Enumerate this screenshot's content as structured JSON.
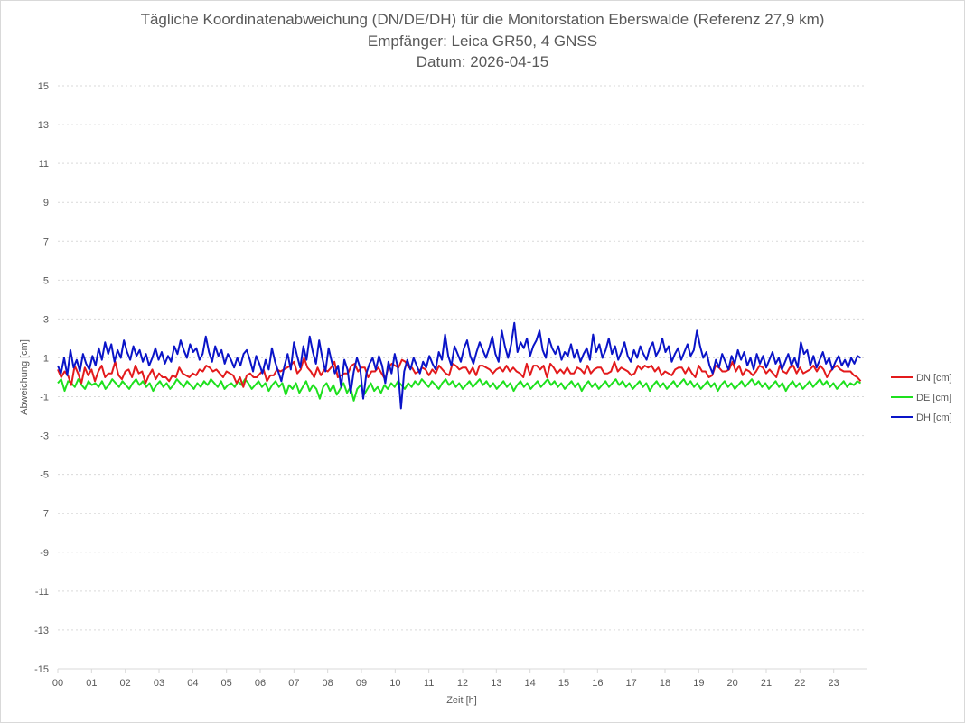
{
  "chart_data": {
    "type": "line",
    "title": "Tägliche Koordinatenabweichung (DN/DE/DH) für die Monitorstation Eberswalde (Referenz 27,9 km)",
    "subtitle_lines": [
      "Empfänger: Leica GR50, 4 GNSS",
      "Datum: 2026-04-15"
    ],
    "xlabel": "Zeit [h]",
    "ylabel": "Abweichung [cm]",
    "x_ticks": [
      "00",
      "01",
      "02",
      "03",
      "04",
      "05",
      "06",
      "07",
      "08",
      "09",
      "10",
      "11",
      "12",
      "13",
      "14",
      "15",
      "16",
      "17",
      "18",
      "19",
      "20",
      "21",
      "22",
      "23"
    ],
    "xlim": [
      0,
      24
    ],
    "ylim": [
      -15,
      15
    ],
    "y_ticks": [
      15,
      13,
      11,
      9,
      7,
      5,
      3,
      1,
      -1,
      -3,
      -5,
      -7,
      -9,
      -11,
      -13,
      -15
    ],
    "grid": "horizontal dotted",
    "legend_position": "right",
    "series": [
      {
        "name": "DN [cm]",
        "color": "#e31a1c",
        "values": [
          0.4,
          0.0,
          0.3,
          0.1,
          -0.4,
          0.6,
          0.2,
          -0.3,
          0.5,
          0.1,
          0.4,
          -0.2,
          0.3,
          0.6,
          0.0,
          0.2,
          0.2,
          0.8,
          0.1,
          -0.1,
          0.3,
          0.4,
          0.0,
          0.6,
          0.2,
          0.3,
          -0.3,
          0.1,
          0.4,
          -0.1,
          0.2,
          0.0,
          0.0,
          -0.2,
          0.1,
          0.0,
          0.5,
          0.2,
          0.1,
          0.0,
          0.2,
          0.1,
          0.4,
          0.3,
          0.6,
          0.5,
          0.3,
          0.4,
          0.2,
          0.0,
          0.3,
          0.2,
          0.1,
          -0.3,
          0.0,
          -0.5,
          0.1,
          0.2,
          0.0,
          0.0,
          0.2,
          0.4,
          -0.2,
          0.1,
          0.1,
          0.4,
          0.3,
          0.4,
          0.5,
          0.6,
          0.8,
          0.2,
          0.4,
          1.0,
          0.5,
          0.3,
          0.0,
          0.5,
          0.1,
          0.4,
          0.3,
          0.5,
          0.8,
          0.0,
          0.1,
          0.2,
          0.2,
          0.6,
          0.7,
          0.3,
          0.5,
          0.5,
          0.0,
          0.3,
          0.3,
          0.5,
          0.2,
          -0.1,
          0.5,
          0.7,
          0.6,
          0.5,
          0.9,
          0.8,
          0.5,
          0.5,
          0.2,
          0.3,
          0.5,
          0.4,
          0.1,
          0.4,
          0.2,
          0.6,
          0.4,
          0.2,
          0.1,
          0.7,
          0.6,
          0.4,
          0.5,
          0.5,
          0.2,
          0.5,
          0.1,
          0.6,
          0.6,
          0.5,
          0.4,
          0.2,
          0.4,
          0.5,
          0.3,
          0.6,
          0.3,
          0.5,
          0.3,
          0.2,
          0.0,
          0.7,
          0.1,
          0.6,
          0.6,
          0.4,
          0.6,
          0.0,
          0.7,
          0.5,
          0.2,
          0.4,
          0.2,
          0.5,
          0.2,
          0.2,
          0.5,
          0.4,
          0.2,
          0.6,
          0.2,
          0.4,
          0.5,
          0.5,
          0.2,
          0.2,
          0.3,
          0.8,
          0.3,
          0.5,
          0.4,
          0.3,
          0.1,
          0.2,
          0.6,
          0.4,
          0.6,
          0.5,
          0.6,
          0.3,
          0.5,
          0.1,
          0.3,
          0.2,
          0.1,
          0.4,
          0.5,
          0.5,
          0.2,
          0.5,
          0.2,
          0.0,
          0.6,
          0.3,
          0.3,
          0.0,
          0.1,
          0.6,
          0.5,
          0.3,
          0.3,
          0.4,
          0.8,
          0.3,
          0.6,
          0.1,
          0.4,
          0.3,
          0.1,
          0.3,
          0.6,
          0.5,
          0.2,
          0.4,
          0.2,
          0.0,
          0.6,
          0.3,
          0.2,
          0.5,
          0.6,
          0.2,
          0.5,
          0.2,
          0.3,
          0.4,
          0.6,
          0.3,
          0.6,
          0.4,
          0.0,
          0.3,
          0.5,
          0.6,
          0.4,
          0.3,
          0.3,
          0.3,
          0.1,
          0.0,
          -0.2
        ]
      },
      {
        "name": "DE [cm]",
        "color": "#1ee01e",
        "values": [
          -0.3,
          -0.1,
          -0.7,
          -0.2,
          -0.3,
          -0.5,
          -0.1,
          -0.4,
          -0.6,
          -0.2,
          -0.4,
          -0.3,
          -0.5,
          -0.2,
          -0.6,
          -0.4,
          -0.1,
          -0.3,
          -0.5,
          -0.2,
          -0.4,
          -0.6,
          -0.3,
          -0.1,
          -0.4,
          -0.2,
          -0.5,
          -0.3,
          -0.7,
          -0.4,
          -0.2,
          -0.5,
          -0.3,
          -0.6,
          -0.4,
          -0.1,
          -0.3,
          -0.5,
          -0.2,
          -0.4,
          -0.6,
          -0.3,
          -0.5,
          -0.2,
          -0.4,
          -0.1,
          -0.3,
          -0.5,
          -0.2,
          -0.6,
          -0.4,
          -0.3,
          -0.5,
          -0.2,
          -0.4,
          -0.1,
          -0.3,
          -0.6,
          -0.4,
          -0.2,
          -0.5,
          -0.3,
          -0.7,
          -0.4,
          -0.2,
          -0.5,
          -0.3,
          -0.9,
          -0.4,
          -0.6,
          -0.3,
          -0.8,
          -0.5,
          -0.2,
          -0.7,
          -0.4,
          -0.6,
          -1.1,
          -0.5,
          -0.3,
          -0.7,
          -0.4,
          -0.9,
          -0.6,
          -0.3,
          -0.8,
          -0.5,
          -1.2,
          -0.6,
          -0.4,
          -0.9,
          -0.6,
          -0.3,
          -0.7,
          -0.5,
          -0.8,
          -0.4,
          -0.6,
          -0.3,
          -0.5,
          -0.2,
          -0.4,
          -0.6,
          -0.3,
          -0.5,
          -0.2,
          -0.4,
          -0.1,
          -0.3,
          -0.5,
          -0.2,
          -0.4,
          -0.6,
          -0.3,
          -0.1,
          -0.4,
          -0.2,
          -0.5,
          -0.3,
          -0.6,
          -0.4,
          -0.2,
          -0.5,
          -0.3,
          -0.1,
          -0.4,
          -0.2,
          -0.5,
          -0.3,
          -0.6,
          -0.4,
          -0.2,
          -0.5,
          -0.3,
          -0.7,
          -0.4,
          -0.2,
          -0.5,
          -0.3,
          -0.6,
          -0.4,
          -0.2,
          -0.5,
          -0.3,
          -0.1,
          -0.4,
          -0.2,
          -0.5,
          -0.3,
          -0.6,
          -0.4,
          -0.2,
          -0.5,
          -0.3,
          -0.7,
          -0.4,
          -0.2,
          -0.5,
          -0.3,
          -0.6,
          -0.4,
          -0.2,
          -0.5,
          -0.3,
          -0.1,
          -0.4,
          -0.2,
          -0.5,
          -0.3,
          -0.6,
          -0.4,
          -0.2,
          -0.5,
          -0.3,
          -0.7,
          -0.4,
          -0.2,
          -0.5,
          -0.3,
          -0.6,
          -0.4,
          -0.2,
          -0.5,
          -0.3,
          -0.1,
          -0.4,
          -0.2,
          -0.5,
          -0.3,
          -0.6,
          -0.4,
          -0.2,
          -0.5,
          -0.3,
          -0.7,
          -0.4,
          -0.2,
          -0.5,
          -0.3,
          -0.6,
          -0.4,
          -0.2,
          -0.5,
          -0.3,
          -0.1,
          -0.4,
          -0.2,
          -0.5,
          -0.3,
          -0.6,
          -0.4,
          -0.2,
          -0.5,
          -0.3,
          -0.7,
          -0.4,
          -0.2,
          -0.5,
          -0.3,
          -0.6,
          -0.4,
          -0.2,
          -0.5,
          -0.3,
          -0.1,
          -0.4,
          -0.2,
          -0.5,
          -0.3,
          -0.6,
          -0.4,
          -0.2,
          -0.5,
          -0.3,
          -0.4,
          -0.2,
          -0.3
        ]
      },
      {
        "name": "DH [cm]",
        "color": "#0a14c8",
        "values": [
          0.6,
          0.2,
          1.0,
          0.1,
          1.4,
          0.5,
          0.9,
          0.3,
          1.2,
          0.7,
          0.4,
          1.1,
          0.6,
          1.5,
          0.9,
          1.8,
          1.2,
          1.7,
          0.8,
          1.4,
          1.0,
          1.9,
          1.3,
          0.9,
          1.6,
          1.1,
          1.4,
          0.8,
          1.2,
          0.6,
          1.0,
          1.5,
          0.9,
          1.3,
          0.7,
          1.1,
          0.8,
          1.6,
          1.2,
          1.9,
          1.4,
          1.0,
          1.7,
          1.3,
          1.5,
          0.9,
          1.2,
          2.1,
          1.3,
          0.8,
          1.6,
          1.1,
          1.4,
          0.7,
          1.2,
          0.9,
          0.5,
          1.0,
          0.6,
          1.2,
          1.4,
          0.9,
          0.3,
          1.1,
          0.7,
          0.2,
          0.9,
          0.4,
          1.5,
          0.8,
          0.3,
          -0.2,
          0.6,
          1.2,
          0.4,
          1.8,
          1.1,
          0.5,
          1.6,
          0.9,
          2.1,
          1.3,
          0.7,
          1.9,
          1.0,
          0.3,
          1.5,
          0.8,
          0.2,
          0.6,
          -0.5,
          0.9,
          0.4,
          -0.8,
          0.3,
          1.0,
          0.5,
          -1.1,
          0.2,
          0.7,
          1.0,
          0.4,
          1.1,
          0.6,
          -0.3,
          0.8,
          0.2,
          1.2,
          0.5,
          -1.6,
          0.3,
          0.9,
          0.4,
          1.0,
          0.6,
          0.2,
          0.8,
          0.5,
          1.1,
          0.7,
          0.4,
          1.3,
          0.9,
          2.2,
          1.1,
          0.6,
          1.6,
          1.2,
          0.8,
          1.5,
          1.9,
          1.1,
          0.7,
          1.3,
          1.8,
          1.4,
          1.0,
          1.5,
          2.1,
          1.2,
          0.8,
          2.4,
          1.6,
          1.0,
          1.7,
          2.8,
          1.3,
          1.8,
          1.5,
          2.0,
          1.1,
          1.6,
          1.9,
          2.4,
          1.4,
          1.0,
          2.0,
          1.5,
          1.2,
          1.6,
          0.9,
          1.3,
          1.1,
          1.7,
          1.0,
          1.4,
          0.8,
          1.2,
          1.5,
          0.9,
          2.2,
          1.3,
          1.7,
          1.0,
          1.4,
          2.0,
          1.2,
          1.6,
          0.9,
          1.3,
          1.8,
          1.1,
          0.8,
          1.4,
          1.0,
          1.6,
          1.2,
          0.9,
          1.5,
          1.8,
          1.1,
          1.4,
          2.0,
          1.3,
          1.6,
          0.8,
          1.2,
          1.5,
          0.9,
          1.3,
          1.7,
          1.1,
          1.4,
          2.4,
          1.6,
          1.0,
          1.3,
          0.6,
          0.2,
          0.9,
          0.5,
          1.2,
          0.8,
          0.4,
          1.1,
          0.7,
          1.4,
          0.9,
          1.3,
          0.6,
          1.0,
          0.4,
          1.2,
          0.7,
          1.1,
          0.5,
          0.9,
          1.3,
          0.7,
          1.0,
          0.4,
          0.8,
          1.2,
          0.6,
          1.0,
          0.5,
          1.8,
          1.2,
          1.4,
          0.6,
          1.1,
          0.5,
          0.9,
          1.3,
          0.7,
          1.0,
          0.4,
          0.8,
          1.1,
          0.6,
          0.9,
          0.5,
          1.0,
          0.7,
          1.1,
          1.0
        ]
      }
    ]
  }
}
